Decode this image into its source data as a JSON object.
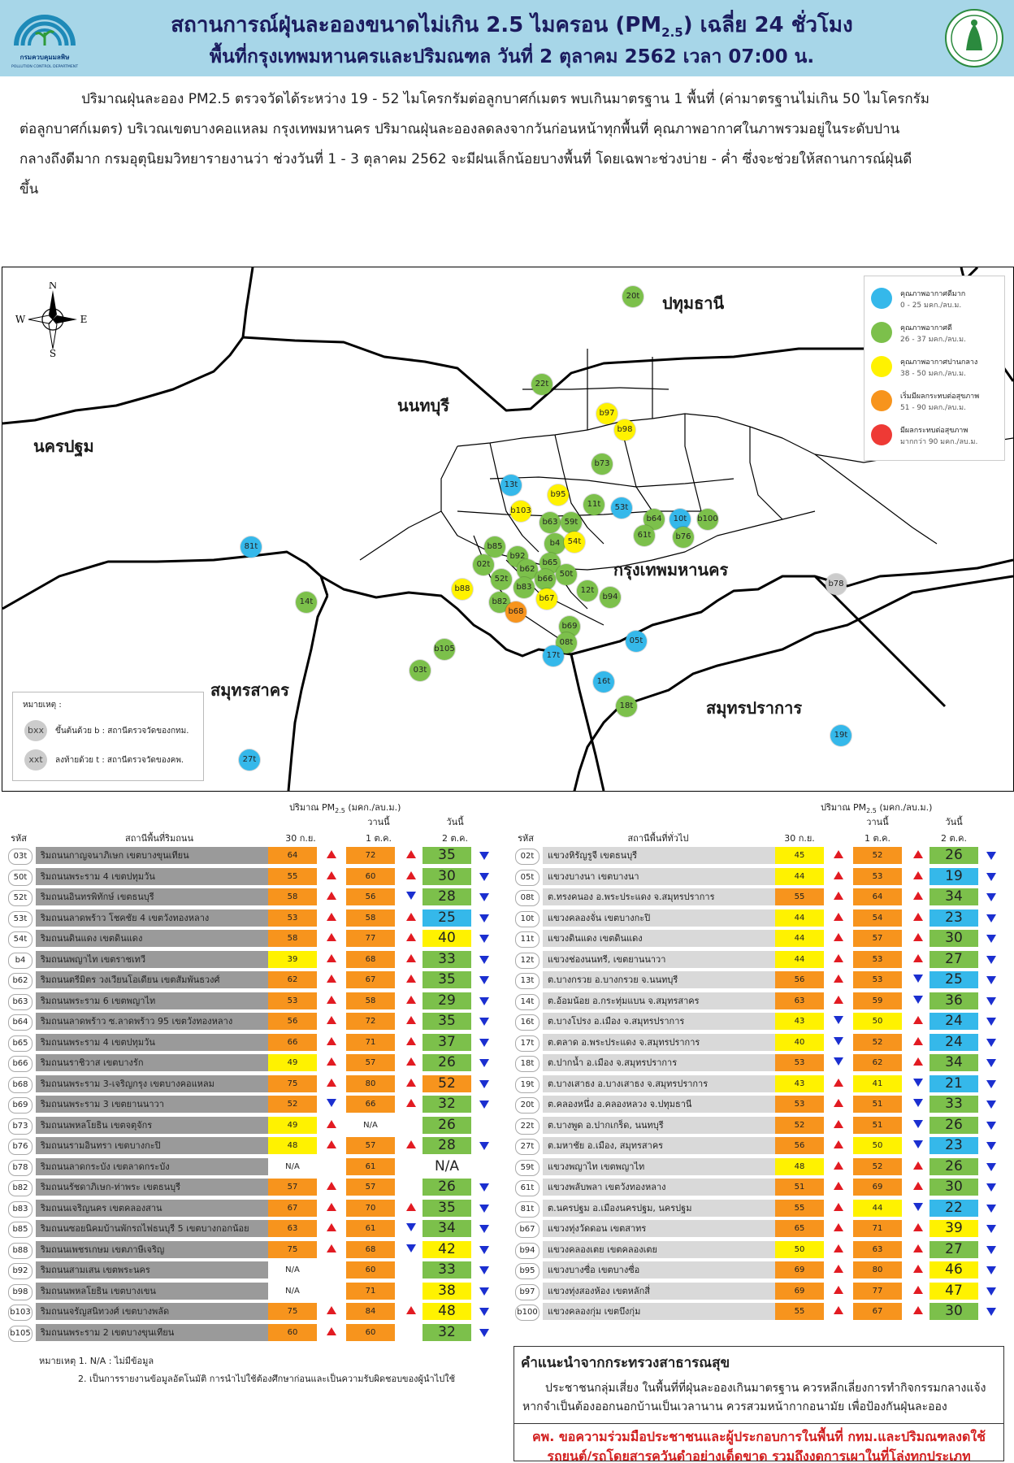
{
  "header": {
    "title_main": "สถานการณ์ฝุ่นละอองขนาดไม่เกิน 2.5 ไมครอน (PM",
    "title_sub": "2.5",
    "title_tail": ") เฉลี่ย 24 ชั่วโมง",
    "subtitle": "พื้นที่กรุงเทพมหานครและปริมณฑล วันที่ 2 ตุลาคม 2562 เวลา 07:00 น.",
    "logo_left_text": "กรมควบคุมมลพิษ",
    "logo_left_en": "POLLUTION CONTROL DEPARTMENT"
  },
  "summary": "ปริมาณฝุ่นละออง PM2.5 ตรวจวัดได้ระหว่าง 19 - 52 ไมโครกรัมต่อลูกบาศก์เมตร พบเกินมาตรฐาน 1 พื้นที่ (ค่ามาตรฐานไม่เกิน 50 ไมโครกรัมต่อลูกบาศก์เมตร) บริเวณเขตบางคอแหลม กรุงเทพมหานคร ปริมาณฝุ่นละอองลดลงจากวันก่อนหน้าทุกพื้นที่ คุณภาพอากาศในภาพรวมอยู่ในระดับปานกลางถึงดีมาก กรมอุตุนิยมวิทยารายงานว่า ช่วงวันที่ 1 - 3 ตุลาคม 2562 จะมีฝนเล็กน้อยบางพื้นที่ โดยเฉพาะช่วงบ่าย - ค่ำ ซึ่งจะช่วยให้สถานการณ์ฝุ่นดีขึ้น",
  "map": {
    "compass": {
      "n": "N",
      "s": "S",
      "e": "E",
      "w": "W"
    },
    "regions": [
      "ปทุมธานี",
      "นนทบุรี",
      "นครปฐม",
      "กรุงเทพมหานคร",
      "สมุทรสาคร",
      "สมุทรปราการ"
    ],
    "colors": {
      "blue": "#35b8ea",
      "green": "#7cc04b",
      "yellow": "#fff200",
      "orange": "#f7941d",
      "red": "#ee3a35",
      "gray": "#cccccc"
    },
    "legend": [
      {
        "name": "คุณภาพอากาศดีมาก",
        "range": "0 - 25 มคก./ลบ.ม.",
        "color": "#35b8ea"
      },
      {
        "name": "คุณภาพอากาศดี",
        "range": "26 - 37 มคก./ลบ.ม.",
        "color": "#7cc04b"
      },
      {
        "name": "คุณภาพอากาศปานกลาง",
        "range": "38 - 50 มคก./ลบ.ม.",
        "color": "#fff200"
      },
      {
        "name": "เริ่มมีผลกระทบต่อสุขภาพ",
        "range": "51 - 90 มคก./ลบ.ม.",
        "color": "#f7941d"
      },
      {
        "name": "มีผลกระทบต่อสุขภาพ",
        "range": "มากกว่า 90 มคก./ลบ.ม.",
        "color": "#ee3a35"
      }
    ],
    "note": {
      "title": "หมายเหตุ :",
      "b_symbol": "bxx",
      "b_text": "ขึ้นต้นด้วย b : สถานีตรวจวัดของกทม.",
      "t_symbol": "xxt",
      "t_text": "ลงท้ายด้วย t : สถานีตรวจวัดของคพ."
    },
    "stations": [
      {
        "id": "20t",
        "level": "green"
      },
      {
        "id": "22t",
        "level": "green"
      },
      {
        "id": "b97",
        "level": "yellow"
      },
      {
        "id": "b98",
        "level": "yellow"
      },
      {
        "id": "b73",
        "level": "green"
      },
      {
        "id": "13t",
        "level": "blue"
      },
      {
        "id": "b95",
        "level": "yellow"
      },
      {
        "id": "b103",
        "level": "yellow"
      },
      {
        "id": "53t",
        "level": "blue"
      },
      {
        "id": "b64",
        "level": "green"
      },
      {
        "id": "10t",
        "level": "blue"
      },
      {
        "id": "b100",
        "level": "green"
      },
      {
        "id": "b63",
        "level": "green"
      },
      {
        "id": "59t",
        "level": "green"
      },
      {
        "id": "11t",
        "level": "green"
      },
      {
        "id": "61t",
        "level": "green"
      },
      {
        "id": "b76",
        "level": "green"
      },
      {
        "id": "81t",
        "level": "blue"
      },
      {
        "id": "b85",
        "level": "green"
      },
      {
        "id": "b4",
        "level": "green"
      },
      {
        "id": "54t",
        "level": "yellow"
      },
      {
        "id": "b92",
        "level": "green"
      },
      {
        "id": "02t",
        "level": "green"
      },
      {
        "id": "b65",
        "level": "green"
      },
      {
        "id": "b62",
        "level": "green"
      },
      {
        "id": "52t",
        "level": "green"
      },
      {
        "id": "b66",
        "level": "green"
      },
      {
        "id": "50t",
        "level": "green"
      },
      {
        "id": "b78",
        "level": "gray"
      },
      {
        "id": "b88",
        "level": "yellow"
      },
      {
        "id": "b83",
        "level": "green"
      },
      {
        "id": "12t",
        "level": "green"
      },
      {
        "id": "14t",
        "level": "green"
      },
      {
        "id": "b82",
        "level": "green"
      },
      {
        "id": "b67",
        "level": "yellow"
      },
      {
        "id": "b94",
        "level": "green"
      },
      {
        "id": "b68",
        "level": "orange"
      },
      {
        "id": "b69",
        "level": "green"
      },
      {
        "id": "05t",
        "level": "blue"
      },
      {
        "id": "08t",
        "level": "green"
      },
      {
        "id": "b105",
        "level": "green"
      },
      {
        "id": "17t",
        "level": "blue"
      },
      {
        "id": "03t",
        "level": "green"
      },
      {
        "id": "16t",
        "level": "blue"
      },
      {
        "id": "18t",
        "level": "green"
      },
      {
        "id": "19t",
        "level": "blue"
      },
      {
        "id": "27t",
        "level": "blue"
      }
    ]
  },
  "tables": {
    "pm_label": "ปริมาณ PM",
    "pm_sub": "2.5",
    "pm_unit": " (มคก./ลบ.ม.)",
    "col_today_top": "วานนี้",
    "col_today2_top": "วันนี้",
    "col_code": "รหัส",
    "col_d1": "30 ก.ย.",
    "col_d2": "1 ต.ค.",
    "col_d3": "2 ต.ค.",
    "left_title": "สถานีพื้นที่ริมถนน",
    "right_title": "สถานีพื้นที่ทั่วไป",
    "left": [
      {
        "code": "03t",
        "name": "ริมถนนกาญจนาภิเษก เขตบางขุนเทียน",
        "v1": "64",
        "v2": "72",
        "v3": "35",
        "a1": "up",
        "a2": "up",
        "a3": "dn",
        "c1": "orange",
        "c2": "orange",
        "c3": "green"
      },
      {
        "code": "50t",
        "name": "ริมถนนพระราม 4 เขตปทุมวัน",
        "v1": "55",
        "v2": "60",
        "v3": "30",
        "a1": "up",
        "a2": "up",
        "a3": "dn",
        "c1": "orange",
        "c2": "orange",
        "c3": "green"
      },
      {
        "code": "52t",
        "name": "ริมถนนอินทรพิทักษ์ เขตธนบุรี",
        "v1": "58",
        "v2": "56",
        "v3": "28",
        "a1": "up",
        "a2": "dn",
        "a3": "dn",
        "c1": "orange",
        "c2": "orange",
        "c3": "green"
      },
      {
        "code": "53t",
        "name": "ริมถนนลาดพร้าว โชคชัย 4 เขตวังทองหลาง",
        "v1": "53",
        "v2": "58",
        "v3": "25",
        "a1": "up",
        "a2": "up",
        "a3": "dn",
        "c1": "orange",
        "c2": "orange",
        "c3": "blue"
      },
      {
        "code": "54t",
        "name": "ริมถนนดินแดง เขตดินแดง",
        "v1": "58",
        "v2": "77",
        "v3": "40",
        "a1": "up",
        "a2": "up",
        "a3": "dn",
        "c1": "orange",
        "c2": "orange",
        "c3": "yellow"
      },
      {
        "code": "b4",
        "name": "ริมถนนพญาไท เขตราชเทวี",
        "v1": "39",
        "v2": "68",
        "v3": "33",
        "a1": "up",
        "a2": "up",
        "a3": "dn",
        "c1": "yellow",
        "c2": "orange",
        "c3": "green"
      },
      {
        "code": "b62",
        "name": "ริมถนนตรีมิตร วงเวียนโอเดียน เขตสัมพันธวงศ์",
        "v1": "62",
        "v2": "67",
        "v3": "35",
        "a1": "up",
        "a2": "up",
        "a3": "dn",
        "c1": "orange",
        "c2": "orange",
        "c3": "green"
      },
      {
        "code": "b63",
        "name": "ริมถนนพระราม 6 เขตพญาไท",
        "v1": "53",
        "v2": "58",
        "v3": "29",
        "a1": "up",
        "a2": "up",
        "a3": "dn",
        "c1": "orange",
        "c2": "orange",
        "c3": "green"
      },
      {
        "code": "b64",
        "name": "ริมถนนลาดพร้าว ซ.ลาดพร้าว 95 เขตวังทองหลาง",
        "v1": "56",
        "v2": "72",
        "v3": "35",
        "a1": "up",
        "a2": "up",
        "a3": "dn",
        "c1": "orange",
        "c2": "orange",
        "c3": "green"
      },
      {
        "code": "b65",
        "name": "ริมถนนพระราม 4 เขตปทุมวัน",
        "v1": "66",
        "v2": "71",
        "v3": "37",
        "a1": "up",
        "a2": "up",
        "a3": "dn",
        "c1": "orange",
        "c2": "orange",
        "c3": "green"
      },
      {
        "code": "b66",
        "name": "ริมถนนราชิวาส เขตบางรัก",
        "v1": "49",
        "v2": "57",
        "v3": "26",
        "a1": "up",
        "a2": "up",
        "a3": "dn",
        "c1": "yellow",
        "c2": "orange",
        "c3": "green"
      },
      {
        "code": "b68",
        "name": "ริมถนนพระราม 3-เจริญกรุง เขตบางคอแหลม",
        "v1": "75",
        "v2": "80",
        "v3": "52",
        "a1": "up",
        "a2": "up",
        "a3": "dn",
        "c1": "orange",
        "c2": "orange",
        "c3": "orange"
      },
      {
        "code": "b69",
        "name": "ริมถนนพระราม 3 เขตยานนาวา",
        "v1": "52",
        "v2": "66",
        "v3": "32",
        "a1": "dn",
        "a2": "up",
        "a3": "dn",
        "c1": "orange",
        "c2": "orange",
        "c3": "green"
      },
      {
        "code": "b73",
        "name": "ริมถนนพหลโยธิน เขตจตุจักร",
        "v1": "49",
        "v2": "N/A",
        "v3": "26",
        "a1": "up",
        "a2": "",
        "a3": "",
        "c1": "yellow",
        "c2": "none",
        "c3": "green"
      },
      {
        "code": "b76",
        "name": "ริมถนนรามอินทรา เขตบางกะปิ",
        "v1": "48",
        "v2": "57",
        "v3": "28",
        "a1": "up",
        "a2": "up",
        "a3": "dn",
        "c1": "yellow",
        "c2": "orange",
        "c3": "green"
      },
      {
        "code": "b78",
        "name": "ริมถนนลาดกระบัง เขตลาดกระบัง",
        "v1": "N/A",
        "v2": "61",
        "v3": "N/A",
        "a1": "",
        "a2": "",
        "a3": "",
        "c1": "none",
        "c2": "orange",
        "c3": "none"
      },
      {
        "code": "b82",
        "name": "ริมถนนรัชดาภิเษก-ท่าพระ เขตธนบุรี",
        "v1": "57",
        "v2": "57",
        "v3": "26",
        "a1": "up",
        "a2": "",
        "a3": "dn",
        "c1": "orange",
        "c2": "orange",
        "c3": "green"
      },
      {
        "code": "b83",
        "name": "ริมถนนเจริญนคร เขตคลองสาน",
        "v1": "67",
        "v2": "70",
        "v3": "35",
        "a1": "up",
        "a2": "up",
        "a3": "dn",
        "c1": "orange",
        "c2": "orange",
        "c3": "green"
      },
      {
        "code": "b85",
        "name": "ริมถนนซอยนิคมบ้านพักรถไฟธนบุรี 5 เขตบางกอกน้อย",
        "v1": "63",
        "v2": "61",
        "v3": "34",
        "a1": "up",
        "a2": "dn",
        "a3": "dn",
        "c1": "orange",
        "c2": "orange",
        "c3": "green"
      },
      {
        "code": "b88",
        "name": "ริมถนนเพชรเกษม เขตภาษีเจริญ",
        "v1": "75",
        "v2": "68",
        "v3": "42",
        "a1": "up",
        "a2": "dn",
        "a3": "dn",
        "c1": "orange",
        "c2": "orange",
        "c3": "yellow"
      },
      {
        "code": "b92",
        "name": "ริมถนนสามเสน เขตพระนคร",
        "v1": "N/A",
        "v2": "60",
        "v3": "33",
        "a1": "",
        "a2": "",
        "a3": "dn",
        "c1": "none",
        "c2": "orange",
        "c3": "green"
      },
      {
        "code": "b98",
        "name": "ริมถนนพหลโยธิน เขตบางเขน",
        "v1": "N/A",
        "v2": "71",
        "v3": "38",
        "a1": "",
        "a2": "",
        "a3": "dn",
        "c1": "none",
        "c2": "orange",
        "c3": "yellow"
      },
      {
        "code": "b103",
        "name": "ริมถนนจรัญสนิทวงศ์ เขตบางพลัด",
        "v1": "75",
        "v2": "84",
        "v3": "48",
        "a1": "up",
        "a2": "up",
        "a3": "dn",
        "c1": "orange",
        "c2": "orange",
        "c3": "yellow"
      },
      {
        "code": "b105",
        "name": "ริมถนนพระราม 2 เขตบางขุนเทียน",
        "v1": "60",
        "v2": "60",
        "v3": "32",
        "a1": "up",
        "a2": "",
        "a3": "dn",
        "c1": "orange",
        "c2": "orange",
        "c3": "green"
      }
    ],
    "right": [
      {
        "code": "02t",
        "name": "แขวงหิรัญรูจี เขตธนบุรี",
        "v1": "45",
        "v2": "52",
        "v3": "26",
        "a1": "up",
        "a2": "up",
        "a3": "dn",
        "c1": "yellow",
        "c2": "orange",
        "c3": "green"
      },
      {
        "code": "05t",
        "name": "แขวงบางนา เขตบางนา",
        "v1": "44",
        "v2": "53",
        "v3": "19",
        "a1": "up",
        "a2": "up",
        "a3": "dn",
        "c1": "yellow",
        "c2": "orange",
        "c3": "blue"
      },
      {
        "code": "08t",
        "name": "ต.ทรงคนอง อ.พระประแดง จ.สมุทรปราการ",
        "v1": "55",
        "v2": "64",
        "v3": "34",
        "a1": "up",
        "a2": "up",
        "a3": "dn",
        "c1": "orange",
        "c2": "orange",
        "c3": "green"
      },
      {
        "code": "10t",
        "name": "แขวงคลองจั่น เขตบางกะปิ",
        "v1": "44",
        "v2": "54",
        "v3": "23",
        "a1": "up",
        "a2": "up",
        "a3": "dn",
        "c1": "yellow",
        "c2": "orange",
        "c3": "blue"
      },
      {
        "code": "11t",
        "name": "แขวงดินแดง เขตดินแดง",
        "v1": "44",
        "v2": "57",
        "v3": "30",
        "a1": "up",
        "a2": "up",
        "a3": "dn",
        "c1": "yellow",
        "c2": "orange",
        "c3": "green"
      },
      {
        "code": "12t",
        "name": "แขวงช่องนนทรี, เขตยานนาวา",
        "v1": "44",
        "v2": "53",
        "v3": "27",
        "a1": "up",
        "a2": "up",
        "a3": "dn",
        "c1": "yellow",
        "c2": "orange",
        "c3": "green"
      },
      {
        "code": "13t",
        "name": "ต.บางกรวย อ.บางกรวย จ.นนทบุรี",
        "v1": "56",
        "v2": "53",
        "v3": "25",
        "a1": "up",
        "a2": "dn",
        "a3": "dn",
        "c1": "orange",
        "c2": "orange",
        "c3": "blue"
      },
      {
        "code": "14t",
        "name": "ต.อ้อมน้อย อ.กระทุ่มแบน จ.สมุทรสาคร",
        "v1": "63",
        "v2": "59",
        "v3": "36",
        "a1": "up",
        "a2": "dn",
        "a3": "dn",
        "c1": "orange",
        "c2": "orange",
        "c3": "green"
      },
      {
        "code": "16t",
        "name": "ต.บางโปรง อ.เมือง จ.สมุทรปราการ",
        "v1": "43",
        "v2": "50",
        "v3": "24",
        "a1": "dn",
        "a2": "up",
        "a3": "dn",
        "c1": "yellow",
        "c2": "yellow",
        "c3": "blue"
      },
      {
        "code": "17t",
        "name": "ต.ตลาด อ.พระประแดง จ.สมุทรปราการ",
        "v1": "40",
        "v2": "52",
        "v3": "24",
        "a1": "dn",
        "a2": "up",
        "a3": "dn",
        "c1": "yellow",
        "c2": "orange",
        "c3": "blue"
      },
      {
        "code": "18t",
        "name": "ต.ปากน้ำ อ.เมือง จ.สมุทรปราการ",
        "v1": "53",
        "v2": "62",
        "v3": "34",
        "a1": "dn",
        "a2": "up",
        "a3": "dn",
        "c1": "orange",
        "c2": "orange",
        "c3": "green"
      },
      {
        "code": "19t",
        "name": "ต.บางเสาธง อ.บางเสาธง จ.สมุทรปราการ",
        "v1": "43",
        "v2": "41",
        "v3": "21",
        "a1": "up",
        "a2": "dn",
        "a3": "dn",
        "c1": "yellow",
        "c2": "yellow",
        "c3": "blue"
      },
      {
        "code": "20t",
        "name": "ต.คลองหนึ่ง อ.คลองหลวง จ.ปทุมธานี",
        "v1": "53",
        "v2": "51",
        "v3": "33",
        "a1": "up",
        "a2": "dn",
        "a3": "dn",
        "c1": "orange",
        "c2": "orange",
        "c3": "green"
      },
      {
        "code": "22t",
        "name": "ต.บางพูด อ.ปากเกร็ด, นนทบุรี",
        "v1": "52",
        "v2": "51",
        "v3": "26",
        "a1": "up",
        "a2": "dn",
        "a3": "dn",
        "c1": "orange",
        "c2": "orange",
        "c3": "green"
      },
      {
        "code": "27t",
        "name": "ต.มหาชัย อ.เมือง, สมุทรสาคร",
        "v1": "56",
        "v2": "50",
        "v3": "23",
        "a1": "up",
        "a2": "dn",
        "a3": "dn",
        "c1": "orange",
        "c2": "yellow",
        "c3": "blue"
      },
      {
        "code": "59t",
        "name": "แขวงพญาไท เขตพญาไท",
        "v1": "48",
        "v2": "52",
        "v3": "26",
        "a1": "up",
        "a2": "up",
        "a3": "dn",
        "c1": "yellow",
        "c2": "orange",
        "c3": "green"
      },
      {
        "code": "61t",
        "name": "แขวงพลับพลา เขตวังทองหลาง",
        "v1": "51",
        "v2": "69",
        "v3": "30",
        "a1": "up",
        "a2": "up",
        "a3": "dn",
        "c1": "orange",
        "c2": "orange",
        "c3": "green"
      },
      {
        "code": "81t",
        "name": "ต.นครปฐม อ.เมืองนครปฐม, นครปฐม",
        "v1": "55",
        "v2": "44",
        "v3": "22",
        "a1": "up",
        "a2": "dn",
        "a3": "dn",
        "c1": "orange",
        "c2": "yellow",
        "c3": "blue"
      },
      {
        "code": "b67",
        "name": "แขวงทุ่งวัดดอน เขตสาทร",
        "v1": "65",
        "v2": "71",
        "v3": "39",
        "a1": "up",
        "a2": "up",
        "a3": "dn",
        "c1": "orange",
        "c2": "orange",
        "c3": "yellow"
      },
      {
        "code": "b94",
        "name": "แขวงคลองเตย เขตคลองเตย",
        "v1": "50",
        "v2": "63",
        "v3": "27",
        "a1": "up",
        "a2": "up",
        "a3": "dn",
        "c1": "yellow",
        "c2": "orange",
        "c3": "green"
      },
      {
        "code": "b95",
        "name": "แขวงบางซื่อ เขตบางซื่อ",
        "v1": "69",
        "v2": "80",
        "v3": "46",
        "a1": "up",
        "a2": "up",
        "a3": "dn",
        "c1": "orange",
        "c2": "orange",
        "c3": "yellow"
      },
      {
        "code": "b97",
        "name": "แขวงทุ่งสองห้อง เขตหลักสี่",
        "v1": "69",
        "v2": "77",
        "v3": "47",
        "a1": "up",
        "a2": "up",
        "a3": "dn",
        "c1": "orange",
        "c2": "orange",
        "c3": "yellow"
      },
      {
        "code": "b100",
        "name": "แขวงคลองกุ่ม เขตบึงกุ่ม",
        "v1": "55",
        "v2": "67",
        "v3": "30",
        "a1": "up",
        "a2": "up",
        "a3": "dn",
        "c1": "orange",
        "c2": "orange",
        "c3": "green"
      }
    ]
  },
  "footnotes": [
    "หมายเหตุ 1. N/A : ไม่มีข้อมูล",
    "2. เป็นการรายงานข้อมูลอัตโนมัติ การนำไปใช้ต้องศึกษาก่อนและเป็นความรับผิดชอบของผู้นำไปใช้"
  ],
  "advice": {
    "title": "คำแนะนำจากกระทรวงสาธารณสุข",
    "body": "ประชาชนกลุ่มเสี่ยง ในพื้นที่ที่ฝุ่นละอองเกินมาตรฐาน ควรหลีกเลี่ยงการทำกิจกรรมกลางแจ้ง หากจำเป็นต้องออกนอกบ้านเป็นเวลานาน ควรสวมหน้ากากอนามัย เพื่อป้องกันฝุ่นละออง",
    "red": "คพ. ขอความร่วมมือประชาชนและผู้ประกอบการในพื้นที่ กทม.และปริมณฑลงดใช้รถยนต์/รถโดยสารควันดำอย่างเด็ดขาด รวมถึงงดการเผาในที่โล่งทุกประเภท"
  }
}
